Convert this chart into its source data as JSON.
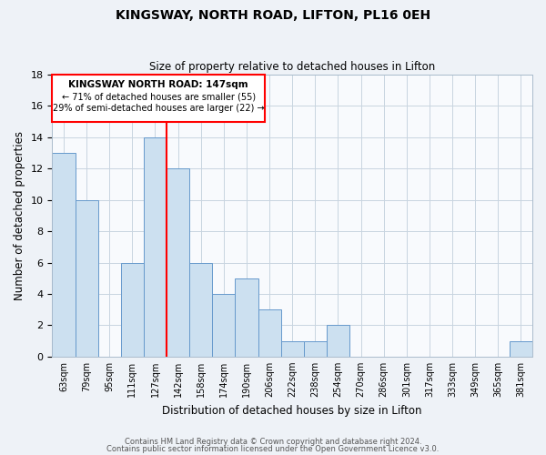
{
  "title": "KINGSWAY, NORTH ROAD, LIFTON, PL16 0EH",
  "subtitle": "Size of property relative to detached houses in Lifton",
  "xlabel": "Distribution of detached houses by size in Lifton",
  "ylabel": "Number of detached properties",
  "bar_labels": [
    "63sqm",
    "79sqm",
    "95sqm",
    "111sqm",
    "127sqm",
    "142sqm",
    "158sqm",
    "174sqm",
    "190sqm",
    "206sqm",
    "222sqm",
    "238sqm",
    "254sqm",
    "270sqm",
    "286sqm",
    "301sqm",
    "317sqm",
    "333sqm",
    "349sqm",
    "365sqm",
    "381sqm"
  ],
  "bar_heights": [
    13,
    10,
    0,
    6,
    14,
    12,
    6,
    4,
    5,
    3,
    1,
    1,
    2,
    0,
    0,
    0,
    0,
    0,
    0,
    0,
    1
  ],
  "bar_color": "#cce0f0",
  "bar_edge_color": "#6699cc",
  "ylim": [
    0,
    18
  ],
  "yticks": [
    0,
    2,
    4,
    6,
    8,
    10,
    12,
    14,
    16,
    18
  ],
  "redline_x": 4.5,
  "annotation_title": "KINGSWAY NORTH ROAD: 147sqm",
  "annotation_line1": "← 71% of detached houses are smaller (55)",
  "annotation_line2": "29% of semi-detached houses are larger (22) →",
  "footer_line1": "Contains HM Land Registry data © Crown copyright and database right 2024.",
  "footer_line2": "Contains public sector information licensed under the Open Government Licence v3.0.",
  "background_color": "#eef2f7",
  "plot_background": "#f8fafd",
  "grid_color": "#c8d4e0"
}
